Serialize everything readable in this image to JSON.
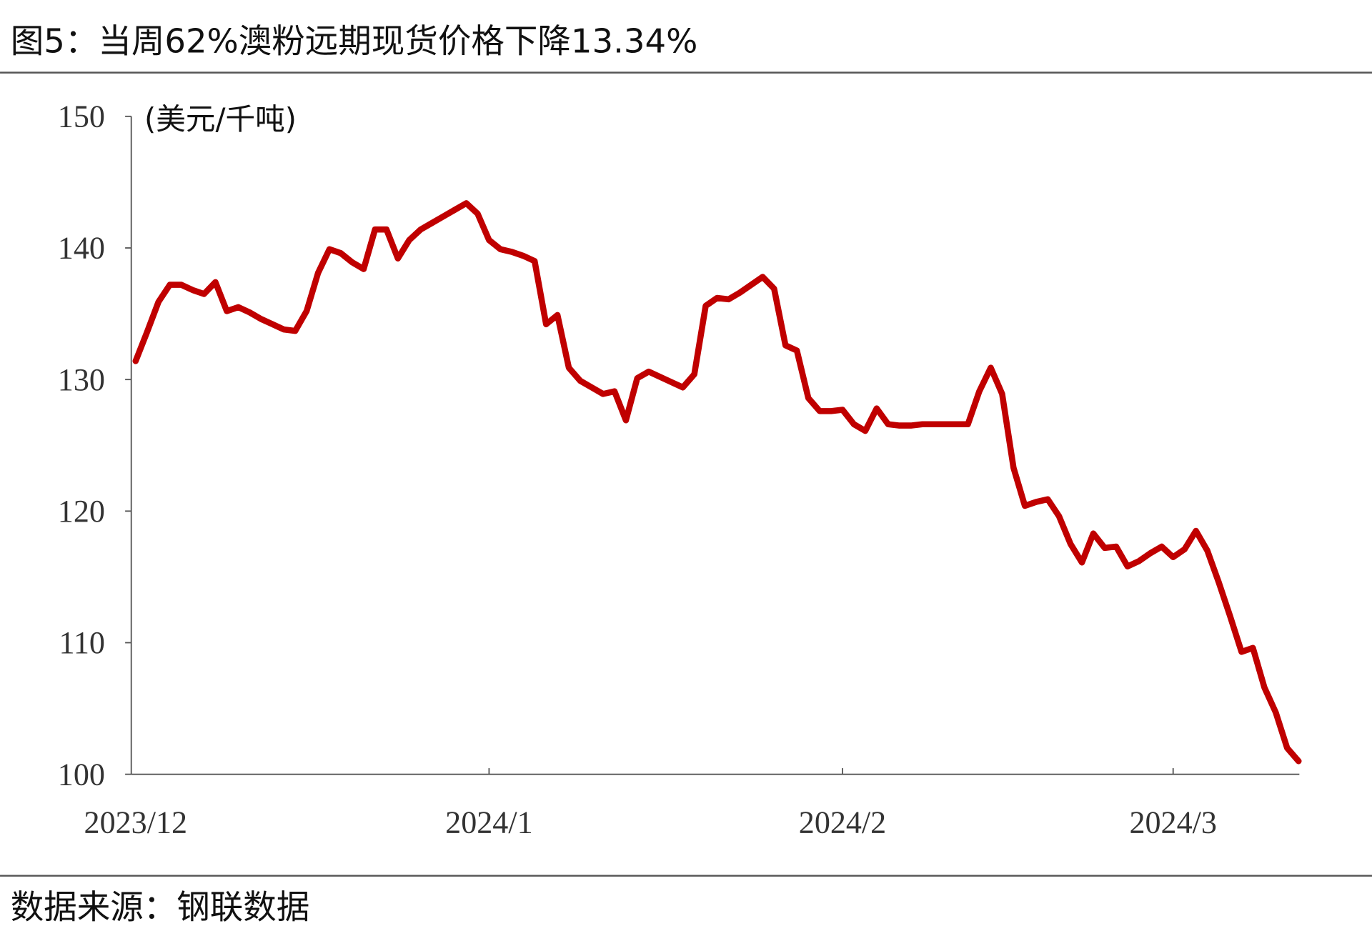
{
  "chart_data": {
    "type": "line",
    "title": "图5：当周62%澳粉远期现货价格下降13.34%",
    "y_label": "(美元/千吨)",
    "source": "数据来源：钢联数据",
    "color": "#c00000",
    "categories": [
      "2023/12",
      null,
      null,
      null,
      null,
      null,
      null,
      null,
      null,
      null,
      null,
      null,
      null,
      null,
      null,
      null,
      null,
      null,
      null,
      null,
      null,
      null,
      null,
      null,
      null,
      null,
      null,
      null,
      null,
      null,
      null,
      "2024/1",
      null,
      null,
      null,
      null,
      null,
      null,
      null,
      null,
      null,
      null,
      null,
      null,
      null,
      null,
      null,
      null,
      null,
      null,
      null,
      null,
      null,
      null,
      null,
      null,
      null,
      null,
      null,
      null,
      null,
      null,
      "2024/2",
      null,
      null,
      null,
      null,
      null,
      null,
      null,
      null,
      null,
      null,
      null,
      null,
      null,
      null,
      null,
      null,
      null,
      null,
      null,
      null,
      null,
      null,
      null,
      null,
      null,
      null,
      null,
      null,
      "2024/3",
      null,
      null,
      null,
      null,
      null,
      null,
      null,
      null,
      null,
      null,
      null
    ],
    "values": [
      131.4,
      133.6,
      135.9,
      137.2,
      137.2,
      136.8,
      136.5,
      137.4,
      135.2,
      135.5,
      135.1,
      134.6,
      134.2,
      133.8,
      133.7,
      135.2,
      138.1,
      139.9,
      139.6,
      138.9,
      138.4,
      141.4,
      141.4,
      139.2,
      140.6,
      141.4,
      141.9,
      142.4,
      142.9,
      143.4,
      142.6,
      140.6,
      139.9,
      139.7,
      139.4,
      139.0,
      134.2,
      134.9,
      130.9,
      129.9,
      129.4,
      128.9,
      129.1,
      126.9,
      130.1,
      130.6,
      130.2,
      129.8,
      129.4,
      130.4,
      135.6,
      136.2,
      136.1,
      136.6,
      137.2,
      137.8,
      136.9,
      132.6,
      132.2,
      128.6,
      127.6,
      127.6,
      127.7,
      126.6,
      126.1,
      127.8,
      126.6,
      126.5,
      126.5,
      126.6,
      126.6,
      126.6,
      126.6,
      126.6,
      129.1,
      130.9,
      128.9,
      123.3,
      120.4,
      120.7,
      120.9,
      119.6,
      117.5,
      116.1,
      118.3,
      117.2,
      117.3,
      115.8,
      116.2,
      116.8,
      117.3,
      116.5,
      117.1,
      118.5,
      117.0,
      114.6,
      112.0,
      109.3,
      109.6,
      106.6,
      104.7,
      102.0,
      101.0
    ],
    "ylim": [
      100,
      150
    ],
    "yticks": [
      100,
      110,
      120,
      130,
      140,
      150
    ]
  }
}
